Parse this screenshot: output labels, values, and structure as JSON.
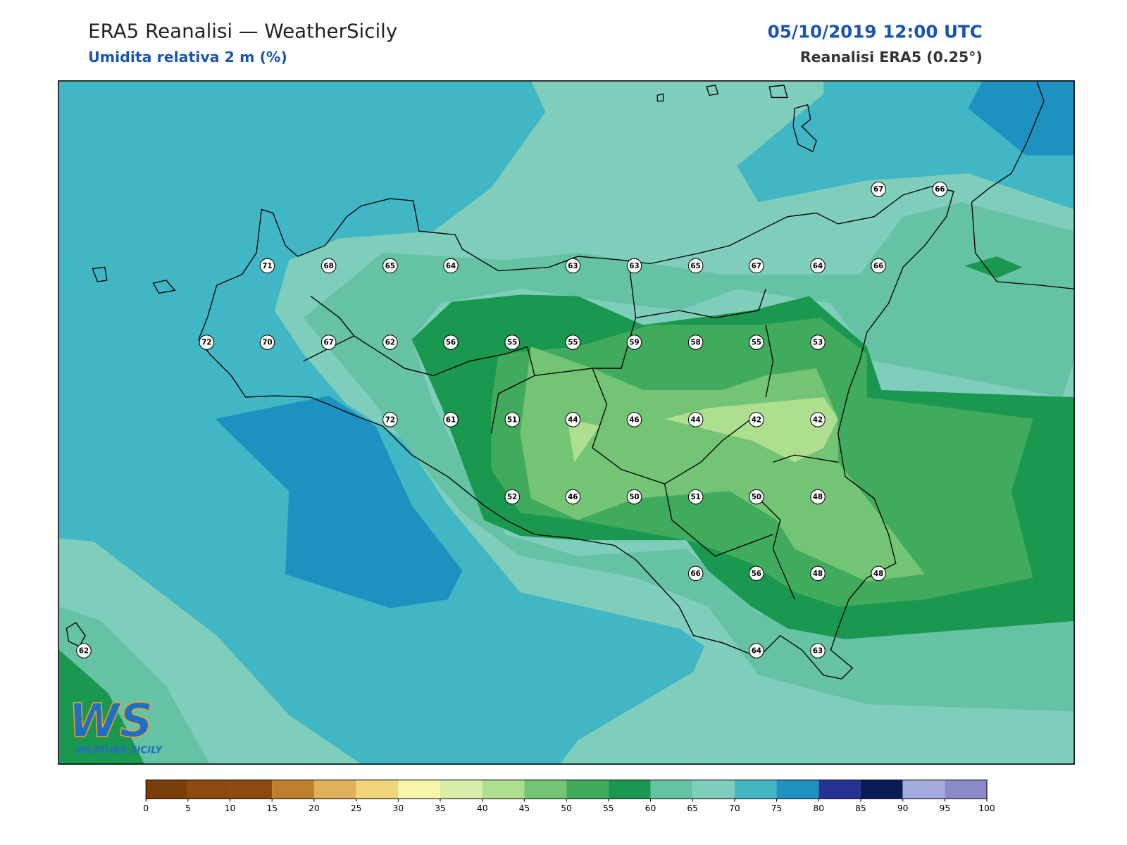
{
  "header": {
    "title": "ERA5 Reanalisi — WeatherSicily",
    "subtitle": "Umidita relativa 2 m (%)",
    "datetime": "05/10/2019 12:00 UTC",
    "source": "Reanalisi ERA5 (0.25°)"
  },
  "stations": [
    67,
    66,
    71,
    68,
    65,
    64,
    63,
    63,
    65,
    67,
    64,
    66,
    72,
    70,
    67,
    62,
    56,
    55,
    55,
    59,
    58,
    55,
    53,
    72,
    61,
    51,
    44,
    46,
    44,
    42,
    42,
    52,
    46,
    50,
    51,
    50,
    48,
    66,
    56,
    48,
    48,
    62,
    64,
    63
  ],
  "legend": {
    "bounds": [
      0,
      5,
      10,
      15,
      20,
      25,
      30,
      35,
      40,
      45,
      50,
      55,
      60,
      65,
      70,
      75,
      80,
      85,
      90,
      95,
      100
    ],
    "colors": [
      "#7a3e0a",
      "#8c4a10",
      "#8c4a10",
      "#bf7e2e",
      "#e0b05a",
      "#f0d57c",
      "#f7f5a8",
      "#d9eca8",
      "#addf8f",
      "#74c476",
      "#41ab5d",
      "#1a9850",
      "#66c2a4",
      "#7fcdbb",
      "#41b6c4",
      "#1d91c0",
      "#253494",
      "#081d58",
      "#a3acdc",
      "#8c89c8"
    ]
  },
  "logo": {
    "mark": "WS",
    "name": "WEATHER SICILY"
  }
}
